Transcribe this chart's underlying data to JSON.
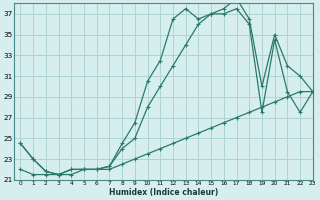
{
  "xlabel": "Humidex (Indice chaleur)",
  "background_color": "#d6eeee",
  "grid_color": "#aed4d4",
  "line_color": "#2a7a6a",
  "xlim": [
    -0.5,
    23
  ],
  "ylim": [
    21,
    38
  ],
  "yticks": [
    21,
    23,
    25,
    27,
    29,
    31,
    33,
    35,
    37
  ],
  "xticks": [
    0,
    1,
    2,
    3,
    4,
    5,
    6,
    7,
    8,
    9,
    10,
    11,
    12,
    13,
    14,
    15,
    16,
    17,
    18,
    19,
    20,
    21,
    22,
    23
  ],
  "series1_x": [
    0,
    1,
    2,
    3,
    4,
    5,
    6,
    7,
    8,
    9,
    10,
    11,
    12,
    13,
    14,
    15,
    16,
    17,
    18,
    19,
    20,
    21,
    22,
    23
  ],
  "series1_y": [
    24.5,
    23.0,
    21.8,
    21.5,
    22.0,
    22.0,
    22.0,
    22.3,
    24.5,
    26.5,
    30.5,
    32.5,
    36.5,
    37.5,
    36.5,
    37.0,
    37.5,
    38.5,
    36.5,
    30.0,
    35.0,
    32.0,
    31.0,
    29.5
  ],
  "series2_x": [
    0,
    1,
    2,
    3,
    4,
    5,
    6,
    7,
    8,
    9,
    10,
    11,
    12,
    13,
    14,
    15,
    16,
    17,
    18,
    19,
    20,
    21,
    22,
    23
  ],
  "series2_y": [
    24.5,
    23.0,
    21.8,
    21.5,
    22.0,
    22.0,
    22.0,
    22.3,
    24.0,
    25.0,
    28.0,
    30.0,
    32.0,
    34.0,
    36.0,
    37.0,
    37.0,
    37.5,
    36.0,
    27.5,
    34.5,
    29.5,
    27.5,
    29.5
  ],
  "series3_x": [
    0,
    1,
    2,
    3,
    4,
    5,
    6,
    7,
    8,
    9,
    10,
    11,
    12,
    13,
    14,
    15,
    16,
    17,
    18,
    19,
    20,
    21,
    22,
    23
  ],
  "series3_y": [
    22.0,
    21.5,
    21.5,
    21.5,
    21.5,
    22.0,
    22.0,
    22.0,
    22.5,
    23.0,
    23.5,
    24.0,
    24.5,
    25.0,
    25.5,
    26.0,
    26.5,
    27.0,
    27.5,
    28.0,
    28.5,
    29.0,
    29.5,
    29.5
  ]
}
